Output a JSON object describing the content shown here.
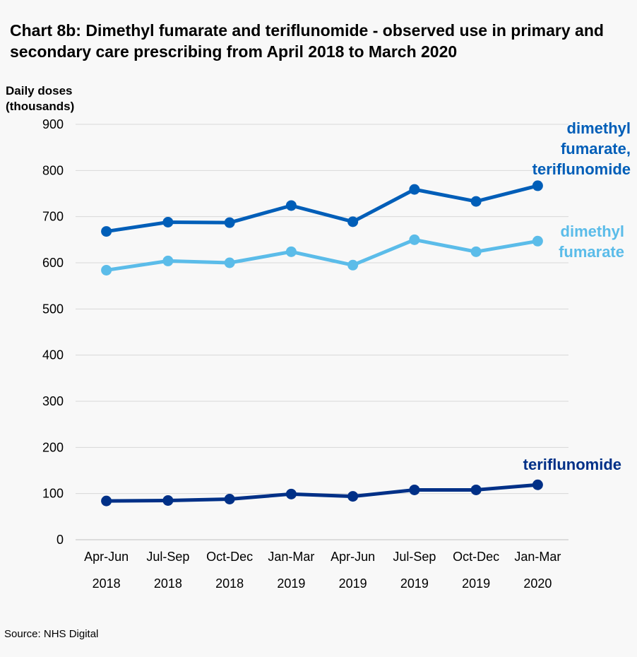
{
  "chart_data": {
    "type": "line",
    "title": "Chart 8b: Dimethyl fumarate and teriflunomide - observed use in primary and secondary care prescribing from April 2018 to March 2020",
    "xlabel": "",
    "ylabel": "Daily doses (thousands)",
    "ylim": [
      0,
      900
    ],
    "yticks": [
      0,
      100,
      200,
      300,
      400,
      500,
      600,
      700,
      800,
      900
    ],
    "grid": true,
    "legend": "direct labels at right of lines",
    "categories": [
      [
        "Apr-Jun",
        "2018"
      ],
      [
        "Jul-Sep",
        "2018"
      ],
      [
        "Oct-Dec",
        "2018"
      ],
      [
        "Jan-Mar",
        "2019"
      ],
      [
        "Apr-Jun",
        "2019"
      ],
      [
        "Jul-Sep",
        "2019"
      ],
      [
        "Oct-Dec",
        "2019"
      ],
      [
        "Jan-Mar",
        "2020"
      ]
    ],
    "series": [
      {
        "name": [
          "dimethyl",
          "fumarate,",
          "teriflunomide"
        ],
        "color": "#005eb8",
        "values": [
          668,
          688,
          687,
          724,
          689,
          759,
          733,
          767
        ]
      },
      {
        "name": [
          "dimethyl",
          "fumarate"
        ],
        "color": "#5bbce9",
        "values": [
          584,
          604,
          600,
          624,
          595,
          650,
          624,
          647
        ]
      },
      {
        "name": [
          "teriflunomide"
        ],
        "color": "#003087",
        "values": [
          84,
          85,
          88,
          99,
          94,
          108,
          108,
          119
        ]
      }
    ]
  },
  "source": "Source: NHS Digital",
  "colors": {
    "background": "#f8f8f8",
    "gridline": "#d9d9d9"
  }
}
